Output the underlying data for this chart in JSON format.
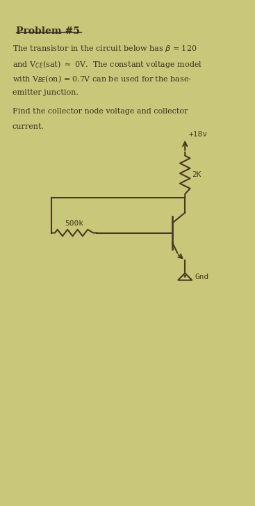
{
  "background_color": "#c9c87a",
  "text_color": "#3a3020",
  "circuit_color": "#4a3820",
  "title": "Problem #5",
  "line1": "The transistor in the circuit below has $\\beta$ = 120",
  "line2": "and V$_{CE}$(sat) $\\approx$ 0V.  The constant voltage model",
  "line3": "with V$_{BE}$(on) = 0.7V can be used for the base-",
  "line4": "emitter junction.",
  "line5": "Find the collector node voltage and collector",
  "line6": "current.",
  "vcc_label": "+18v",
  "rc_label": "2K",
  "rb_label": "500k",
  "gnd_label": "Gnd"
}
